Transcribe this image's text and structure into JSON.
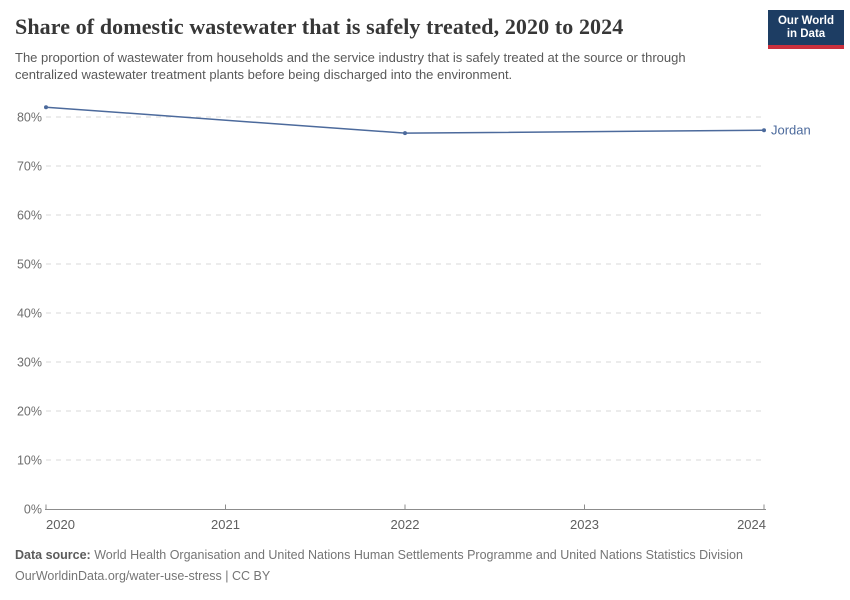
{
  "header": {
    "title": "Share of domestic wastewater that is safely treated, 2020 to 2024",
    "subtitle": "The proportion of wastewater from households and the service industry that is safely treated at the source or through centralized wastewater treatment plants before being discharged into the environment.",
    "logo": {
      "line1": "Our World",
      "line2": "in Data",
      "bg_color": "#1d3d63",
      "stripe_color": "#cb303d"
    }
  },
  "chart_data": {
    "type": "line",
    "title": "Share of domestic wastewater that is safely treated, 2020 to 2024",
    "x": [
      2020,
      2022,
      2024
    ],
    "series": [
      {
        "name": "Jordan",
        "color": "#4c6a9c",
        "values": [
          82,
          76.7,
          77.3
        ]
      }
    ],
    "x_ticks": [
      2020,
      2021,
      2022,
      2023,
      2024
    ],
    "y_ticks": [
      0,
      10,
      20,
      30,
      40,
      50,
      60,
      70,
      80
    ],
    "y_tick_suffix": "%",
    "xlim": [
      2020,
      2024
    ],
    "ylim": [
      0,
      84
    ],
    "grid": "horizontal-dashed",
    "legend_position": "end-of-line-label",
    "colors": {
      "grid": "#d9d9d9",
      "axis": "#8c8c8c",
      "y_tick_label": "#6e6e6e",
      "x_tick_label": "#5f5f5f"
    }
  },
  "footer": {
    "source_label": "Data source:",
    "source_text": "World Health Organisation and United Nations Human Settlements Programme and United Nations Statistics Division",
    "link_line": "OurWorldinData.org/water-use-stress | CC BY"
  }
}
